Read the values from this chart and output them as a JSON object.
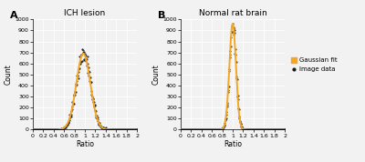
{
  "panel_A_title": "ICH lesion",
  "panel_B_title": "Normal rat brain",
  "xlabel": "Ratio",
  "ylabel": "Count",
  "panel_label_A": "A",
  "panel_label_B": "B",
  "xlim": [
    0,
    2
  ],
  "ylim": [
    0,
    1000
  ],
  "yticks": [
    0,
    100,
    200,
    300,
    400,
    500,
    600,
    700,
    800,
    900,
    1000
  ],
  "xticks": [
    0,
    0.2,
    0.4,
    0.6,
    0.8,
    1.0,
    1.2,
    1.4,
    1.6,
    1.8,
    2.0
  ],
  "xtick_labels": [
    "0",
    "0.2",
    "0.4",
    "0.6",
    "0.8",
    "1",
    "1.2",
    "1.4",
    "1.6",
    "1.8",
    "2"
  ],
  "gaussian_color": "#F5A623",
  "image_data_color": "#1a1a1a",
  "legend_gaussian": "Gaussian fit",
  "legend_image": "Image data",
  "bg_color": "#f2f2f2",
  "panel_A_mu": 0.97,
  "panel_A_sigma": 0.135,
  "panel_A_amp": 690,
  "panel_B_mu": 1.0,
  "panel_B_sigma": 0.063,
  "panel_B_amp": 960,
  "noise_seed_A": 42,
  "noise_seed_B": 7
}
